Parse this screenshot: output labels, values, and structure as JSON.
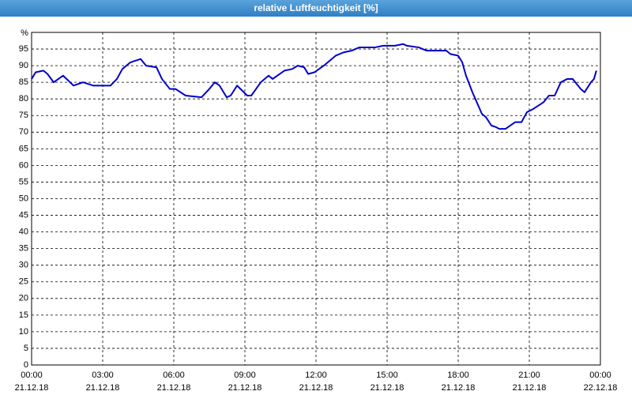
{
  "chart_data": {
    "type": "line",
    "title": "relative Luftfeuchtigkeit [%]",
    "y_label": "%",
    "color": "#0000cc",
    "x": [
      0,
      0.17,
      0.5,
      0.67,
      0.93,
      1.33,
      1.77,
      2.17,
      2.6,
      3.33,
      3.6,
      3.83,
      4.17,
      4.6,
      4.83,
      5.27,
      5.5,
      5.83,
      6.07,
      6.5,
      7.17,
      7.5,
      7.73,
      7.93,
      8.23,
      8.4,
      8.67,
      9.1,
      9.27,
      9.67,
      10,
      10.17,
      10.67,
      11,
      11.23,
      11.5,
      11.67,
      11.93,
      12.33,
      12.83,
      13.17,
      13.5,
      13.83,
      14.5,
      14.83,
      15.33,
      15.67,
      15.83,
      16.33,
      16.67,
      17.5,
      17.67,
      18,
      18.17,
      18.33,
      18.6,
      19,
      19.17,
      19.4,
      19.6,
      19.73,
      20,
      20.4,
      20.67,
      20.9,
      21.17,
      21.6,
      21.83,
      22.07,
      22.33,
      22.6,
      22.83,
      23.17,
      23.33,
      23.6,
      23.73,
      23.83
    ],
    "values": [
      86,
      88,
      88.5,
      87.5,
      85,
      87,
      84,
      85,
      84,
      84,
      86,
      89,
      91,
      92,
      90,
      89.5,
      86,
      83,
      83,
      81,
      80.5,
      83,
      85,
      84,
      80.5,
      81,
      84,
      81,
      81,
      85,
      87,
      86,
      88.5,
      89,
      90,
      89.5,
      87.5,
      88,
      90,
      93,
      94,
      94.5,
      95.5,
      95.5,
      96,
      96,
      96.5,
      96,
      95.5,
      94.5,
      94.5,
      93.5,
      93,
      91,
      87,
      82,
      75.5,
      74.5,
      72,
      71.5,
      71,
      71,
      73,
      73,
      76,
      77,
      79,
      81,
      81,
      85,
      86,
      86,
      83,
      82,
      85,
      86,
      88.5
    ],
    "xlim": [
      0,
      24
    ],
    "xticks": [
      {
        "value": 0,
        "label": "00:00",
        "date": "21.12.18"
      },
      {
        "value": 3,
        "label": "03:00",
        "date": "21.12.18"
      },
      {
        "value": 6,
        "label": "06:00",
        "date": "21.12.18"
      },
      {
        "value": 9,
        "label": "09:00",
        "date": "21.12.18"
      },
      {
        "value": 12,
        "label": "12:00",
        "date": "21.12.18"
      },
      {
        "value": 15,
        "label": "15:00",
        "date": "21.12.18"
      },
      {
        "value": 18,
        "label": "18:00",
        "date": "21.12.18"
      },
      {
        "value": 21,
        "label": "21:00",
        "date": "21.12.18"
      },
      {
        "value": 24,
        "label": "00:00",
        "date": "22.12.18"
      }
    ],
    "ylim": [
      0,
      100
    ],
    "yticks": [
      0,
      5,
      10,
      15,
      20,
      25,
      30,
      35,
      40,
      45,
      50,
      55,
      60,
      65,
      70,
      75,
      80,
      85,
      90,
      95
    ],
    "grid": true
  }
}
